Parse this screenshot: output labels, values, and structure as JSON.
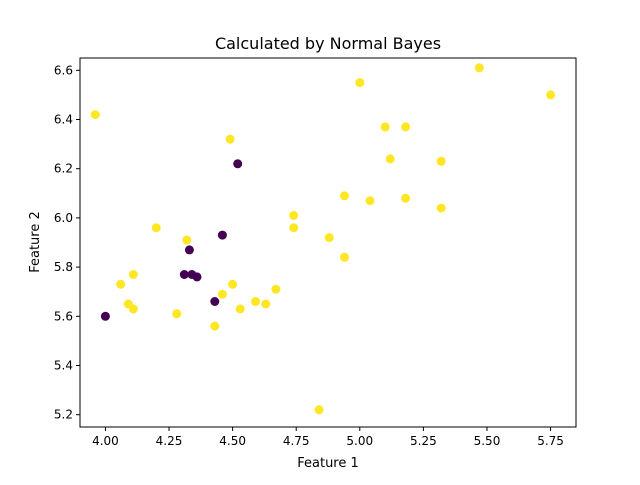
{
  "chart_data": {
    "type": "scatter",
    "title": "Calculated by Normal Bayes",
    "xlabel": "Feature 1",
    "ylabel": "Feature 2",
    "xlim": [
      3.9,
      5.85
    ],
    "ylim": [
      5.15,
      6.65
    ],
    "xticks": [
      "4.00",
      "4.25",
      "4.50",
      "4.75",
      "5.00",
      "5.25",
      "5.50",
      "5.75"
    ],
    "yticks": [
      "5.2",
      "5.4",
      "5.6",
      "5.8",
      "6.0",
      "6.2",
      "6.4",
      "6.6"
    ],
    "grid": false,
    "legend": "none",
    "series": [
      {
        "color": "#440154",
        "points": [
          [
            4.0,
            5.6
          ],
          [
            4.33,
            5.87
          ],
          [
            4.46,
            5.93
          ],
          [
            4.52,
            6.22
          ],
          [
            4.31,
            5.77
          ],
          [
            4.34,
            5.77
          ],
          [
            4.36,
            5.76
          ],
          [
            4.43,
            5.66
          ]
        ]
      },
      {
        "color": "#fde725",
        "points": [
          [
            3.96,
            6.42
          ],
          [
            4.06,
            5.73
          ],
          [
            4.11,
            5.77
          ],
          [
            4.09,
            5.65
          ],
          [
            4.11,
            5.63
          ],
          [
            4.2,
            5.96
          ],
          [
            4.32,
            5.91
          ],
          [
            4.28,
            5.61
          ],
          [
            4.43,
            5.56
          ],
          [
            4.46,
            5.69
          ],
          [
            4.49,
            6.32
          ],
          [
            4.5,
            5.73
          ],
          [
            4.53,
            5.63
          ],
          [
            4.59,
            5.66
          ],
          [
            4.63,
            5.65
          ],
          [
            4.67,
            5.71
          ],
          [
            4.74,
            6.01
          ],
          [
            4.74,
            5.96
          ],
          [
            4.84,
            5.22
          ],
          [
            4.88,
            5.92
          ],
          [
            4.94,
            6.09
          ],
          [
            4.94,
            5.84
          ],
          [
            5.0,
            6.55
          ],
          [
            5.04,
            6.07
          ],
          [
            5.1,
            6.37
          ],
          [
            5.12,
            6.24
          ],
          [
            5.18,
            6.37
          ],
          [
            5.18,
            6.08
          ],
          [
            5.32,
            6.23
          ],
          [
            5.32,
            6.04
          ],
          [
            5.47,
            6.61
          ],
          [
            5.75,
            6.5
          ]
        ]
      }
    ]
  }
}
